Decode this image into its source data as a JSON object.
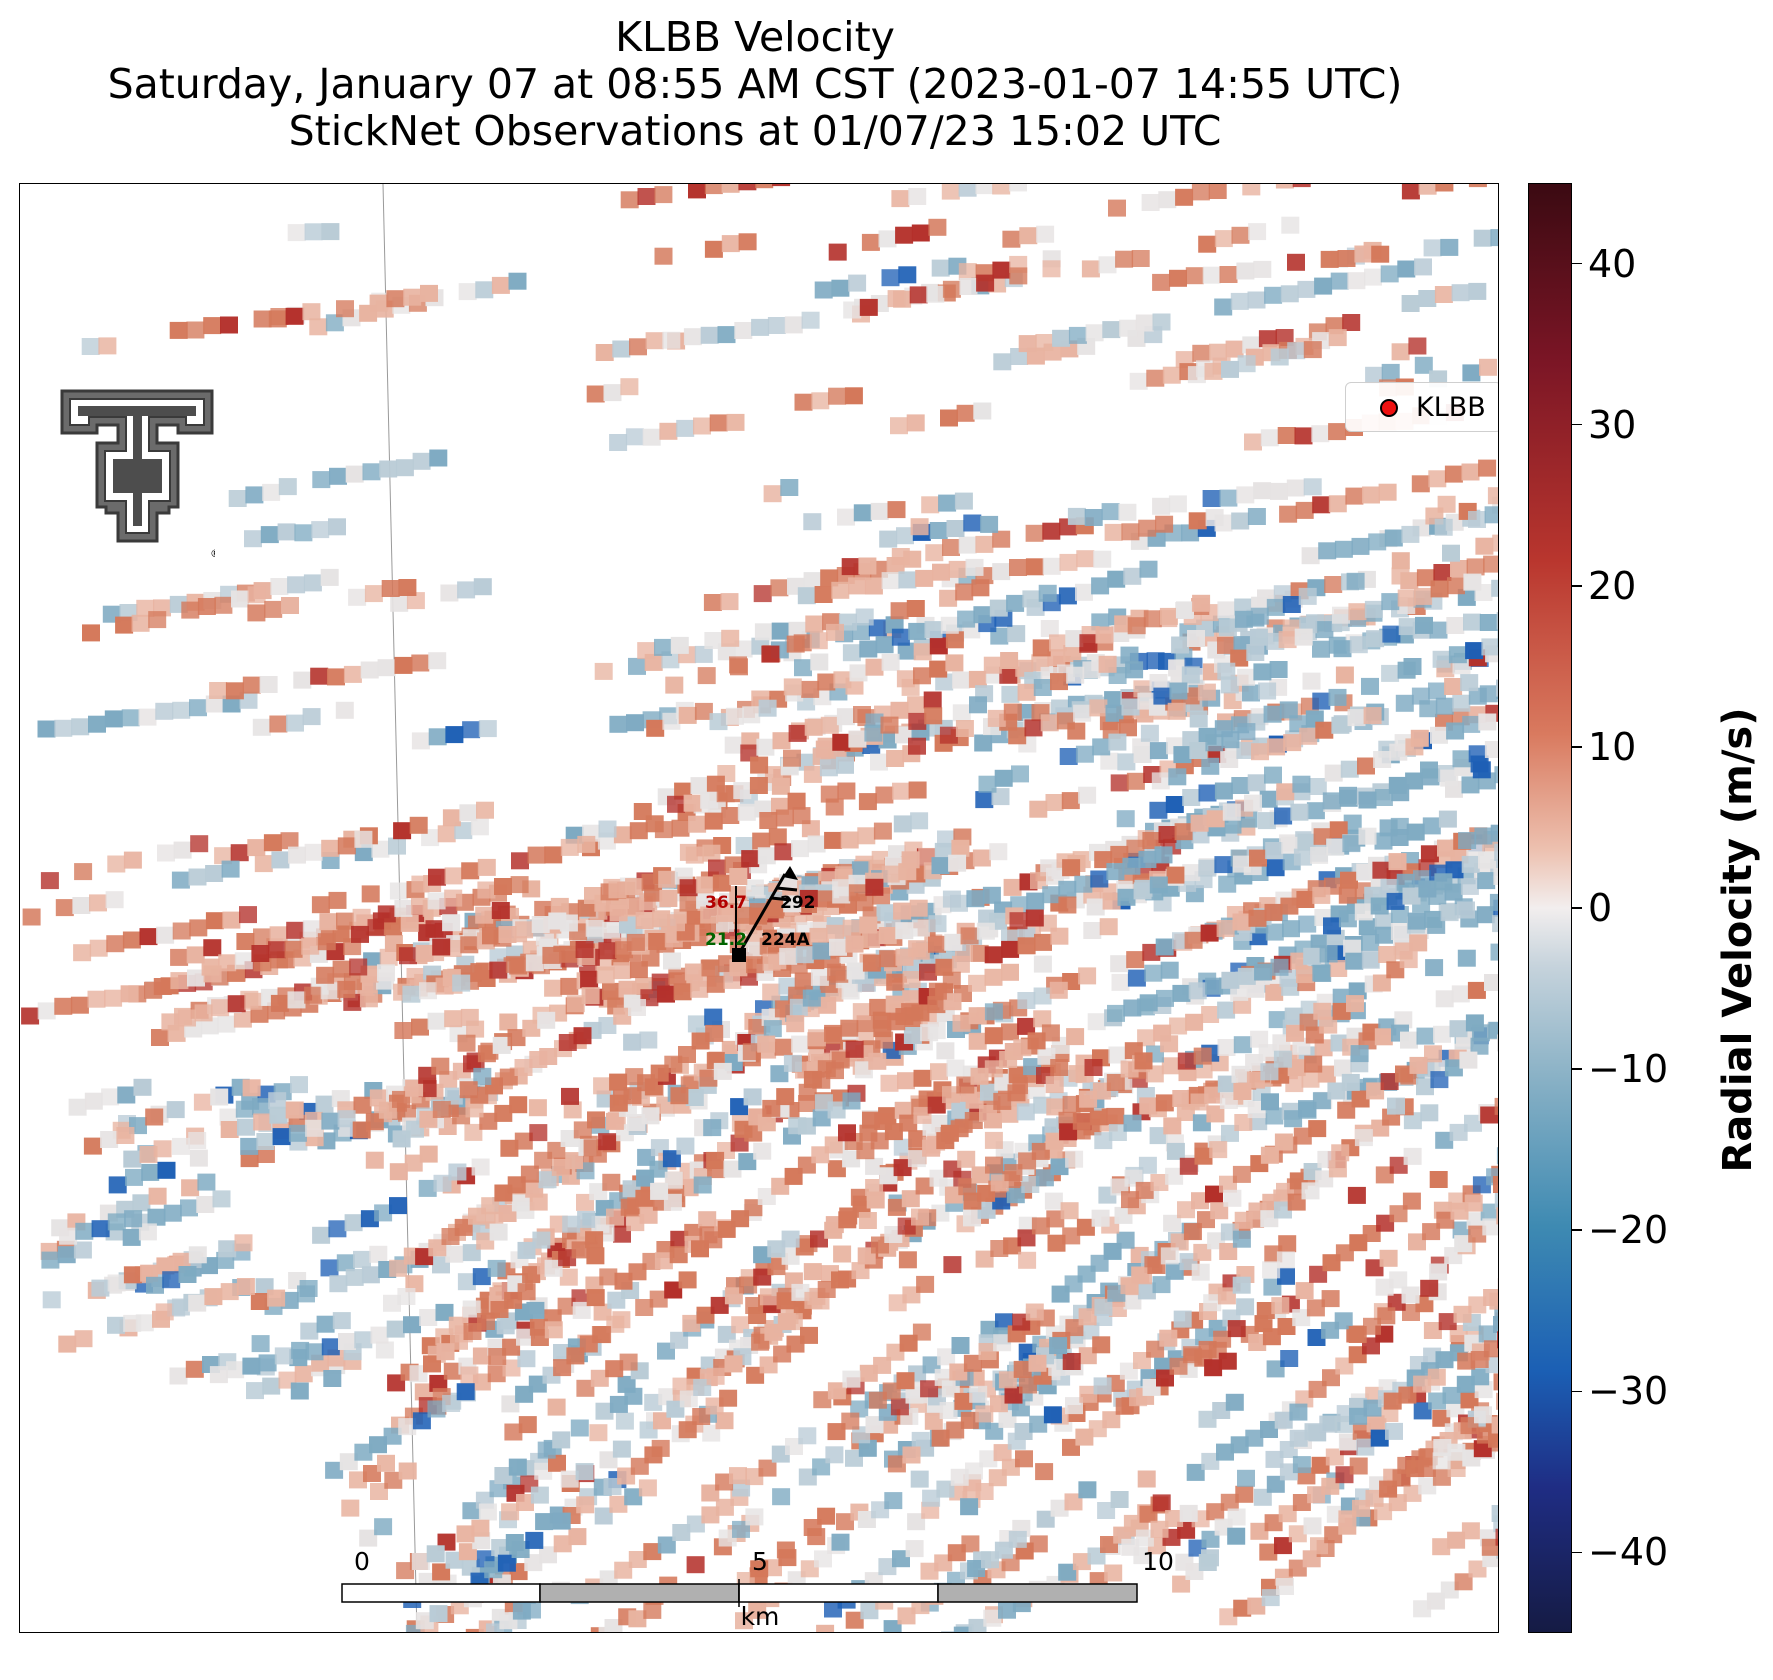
{
  "title": {
    "line1": "KLBB Velocity",
    "line2": "Saturday, January 07 at 08:55 AM CST (2023-01-07 14:55 UTC)",
    "line3": "StickNet Observations at 01/07/23 15:02 UTC"
  },
  "legend": {
    "label": "KLBB",
    "marker_color": "#ee1111"
  },
  "logo": {
    "name": "texas-tech-double-t-logo",
    "mark": "®"
  },
  "colorbar": {
    "label": "Radial Velocity (m/s)",
    "vmin": -45,
    "vmax": 45,
    "ticks": [
      {
        "value": 40,
        "label": "40"
      },
      {
        "value": 30,
        "label": "30"
      },
      {
        "value": 20,
        "label": "20"
      },
      {
        "value": 10,
        "label": "10"
      },
      {
        "value": 0,
        "label": "0"
      },
      {
        "value": -10,
        "label": "−10"
      },
      {
        "value": -20,
        "label": "−20"
      },
      {
        "value": -30,
        "label": "−30"
      },
      {
        "value": -40,
        "label": "−40"
      }
    ]
  },
  "station": {
    "temperature": "36.7",
    "wind_direction": "292",
    "dewpoint": "21.2",
    "id": "224A",
    "temperature_color": "#b30000",
    "dewpoint_color": "#006400"
  },
  "scalebar": {
    "labels": [
      "0",
      "5",
      "10"
    ],
    "unit": "km"
  },
  "palette": {
    "strong_pos": "#b4302a",
    "pos": "#d4785a",
    "light_pos": "#e8b3a0",
    "neutral": "#e6e3e3",
    "light_neg": "#b9cbd6",
    "neg": "#7eaac2",
    "strong_neg": "#1d5fb5"
  }
}
